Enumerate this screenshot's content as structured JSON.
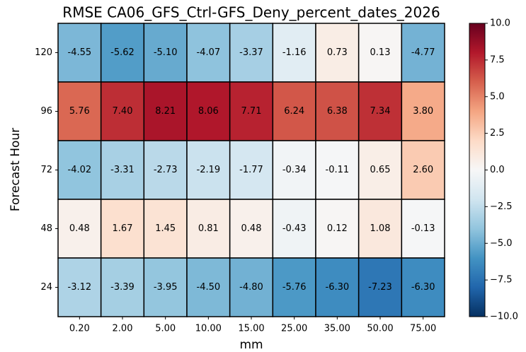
{
  "chart_data": {
    "type": "heatmap",
    "title": "RMSE CA06_GFS_Ctrl-GFS_Deny_percent_dates_2026",
    "x_label": "mm",
    "y_label": "Forecast Hour",
    "categories": [
      "0.20",
      "2.00",
      "5.00",
      "10.00",
      "15.00",
      "25.00",
      "35.00",
      "50.00",
      "75.00"
    ],
    "y_categories": [
      120,
      96,
      72,
      48,
      24
    ],
    "values": [
      [
        -4.55,
        -5.62,
        -5.1,
        -4.07,
        -3.37,
        -1.16,
        0.73,
        0.13,
        -4.77
      ],
      [
        5.76,
        7.4,
        8.21,
        8.06,
        7.71,
        6.24,
        6.38,
        7.34,
        3.8
      ],
      [
        -4.02,
        -3.31,
        -2.73,
        -2.19,
        -1.77,
        -0.34,
        -0.11,
        0.65,
        2.6
      ],
      [
        0.48,
        1.67,
        1.45,
        0.81,
        0.48,
        -0.43,
        0.12,
        1.08,
        -0.13
      ],
      [
        -3.12,
        -3.39,
        -3.95,
        -4.5,
        -4.8,
        -5.76,
        -6.3,
        -7.23,
        -6.3
      ]
    ],
    "value_labels": [
      [
        "-4.55",
        "-5.62",
        "-5.10",
        "-4.07",
        "-3.37",
        "-1.16",
        "0.73",
        "0.13",
        "-4.77"
      ],
      [
        "5.76",
        "7.40",
        "8.21",
        "8.06",
        "7.71",
        "6.24",
        "6.38",
        "7.34",
        "3.80"
      ],
      [
        "-4.02",
        "-3.31",
        "-2.73",
        "-2.19",
        "-1.77",
        "-0.34",
        "-0.11",
        "0.65",
        "2.60"
      ],
      [
        "0.48",
        "1.67",
        "1.45",
        "0.81",
        "0.48",
        "-0.43",
        "0.12",
        "1.08",
        "-0.13"
      ],
      [
        "-3.12",
        "-3.39",
        "-3.95",
        "-4.50",
        "-4.80",
        "-5.76",
        "-6.30",
        "-7.23",
        "-6.30"
      ]
    ],
    "colormap": "RdBu_r",
    "zlim": [
      -10,
      10
    ],
    "zticks": [
      {
        "value": 10,
        "label": "10.0"
      },
      7.5,
      {
        "value": 5,
        "label": "5.0"
      },
      2.5,
      {
        "value": 0,
        "label": "0.0"
      },
      {
        "value": -2.5,
        "label": "−2.5"
      },
      {
        "value": -5,
        "label": "−5.0"
      },
      {
        "value": -7.5,
        "label": "−7.5"
      },
      {
        "value": -10,
        "label": "−10.0"
      }
    ]
  }
}
